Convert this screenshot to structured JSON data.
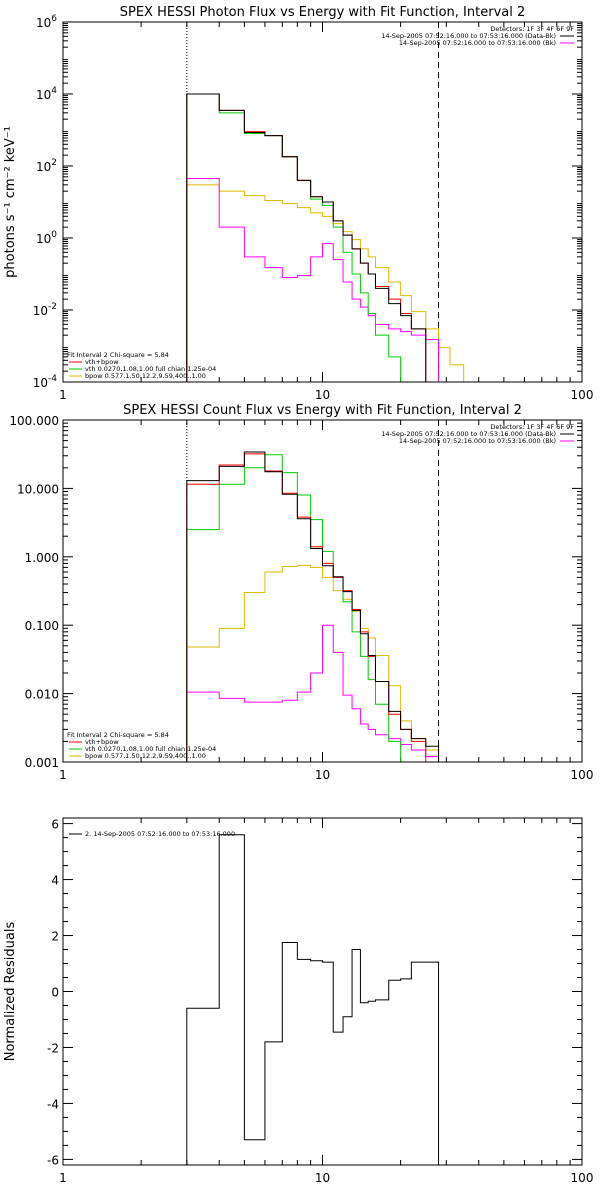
{
  "colors": {
    "total": "#000000",
    "vth_spow": "#ff0000",
    "vth": "#00cc00",
    "bpow": "#ddbb00",
    "background": "#ff00ff",
    "axes": "#000000"
  },
  "chart_data": [
    {
      "type": "line",
      "step": true,
      "xscale": "log",
      "yscale": "log",
      "title": "SPEX HESSI Photon Flux vs Energy with Fit Function, Interval 2",
      "ylabel": "photons s⁻¹ cm⁻² keV⁻¹",
      "xlim": [
        1,
        100
      ],
      "ylim": [
        0.0001,
        1000000
      ],
      "xticks": [
        {
          "v": 1,
          "label": "1"
        },
        {
          "v": 10,
          "label": "10"
        },
        {
          "v": 100,
          "label": "100"
        }
      ],
      "yticks": [
        {
          "v": 0.0001,
          "base": "10",
          "exp": "-4"
        },
        {
          "v": 0.01,
          "base": "10",
          "exp": "-2"
        },
        {
          "v": 1,
          "base": "10",
          "exp": "0"
        },
        {
          "v": 100,
          "base": "10",
          "exp": "2"
        },
        {
          "v": 10000,
          "base": "10",
          "exp": "4"
        },
        {
          "v": 1000000,
          "base": "10",
          "exp": "6"
        }
      ],
      "vlines": [
        {
          "x": 3,
          "style": "dotted"
        },
        {
          "x": 28,
          "style": "dashed"
        }
      ],
      "header_lines": [
        {
          "text": "Detectors: 1F 3F 4F 6F 9F",
          "color": ""
        },
        {
          "text": "14-Sep-2005 07:52:16.000 to 07:53:16.000 (Data-Bk)",
          "color": "#000000"
        },
        {
          "text": "14-Sep-2005 07:52:16.000 to 07:53:16.000 (Bk)",
          "color": "#ff00ff"
        }
      ],
      "legend_lines": [
        {
          "text": "Fit Interval 2   Chi-square = 5.84",
          "color": ""
        },
        {
          "text": "vth+bpow",
          "color": "#ff0000"
        },
        {
          "text": "vth 0.0270,1.08,1.00  full chian 1.25e-04",
          "color": "#00cc00"
        },
        {
          "text": "bpow 0.577,1.50,12.2,9.59,400.,1.00",
          "color": "#ddbb00"
        }
      ],
      "bin_edges": [
        3,
        4,
        5,
        6,
        7,
        8,
        9,
        10,
        11,
        12,
        13,
        14,
        15,
        16,
        18,
        20,
        22,
        25,
        28,
        31,
        35,
        40
      ],
      "series": [
        {
          "color": "#ddbb00",
          "values": [
            30,
            20,
            15,
            11,
            9,
            7,
            5,
            4,
            2.5,
            1.5,
            0.9,
            0.5,
            0.3,
            0.15,
            0.06,
            0.025,
            0.009,
            0.003,
            0.0009,
            0.0003,
            0.0001
          ]
        },
        {
          "color": "#ff00ff",
          "values": [
            45,
            2,
            0.3,
            0.15,
            0.08,
            0.09,
            0.3,
            0.7,
            0.25,
            0.06,
            0.02,
            0.012,
            0.007,
            0.004,
            0.003,
            0.0025,
            0.002,
            0.0015,
            0.0001
          ]
        },
        {
          "color": "#00cc00",
          "values": [
            10000,
            3000,
            800,
            700,
            180,
            40,
            12,
            8,
            2,
            0.4,
            0.1,
            0.03,
            0.008,
            0.002,
            0.0005,
            0.0001
          ]
        },
        {
          "color": "#ff0000",
          "values": [
            10000,
            3500,
            900,
            700,
            180,
            40,
            14,
            10,
            3,
            1.2,
            0.5,
            0.2,
            0.1,
            0.045,
            0.02,
            0.008,
            0.003
          ]
        },
        {
          "color": "#000000",
          "values": [
            10000,
            3500,
            850,
            700,
            180,
            40,
            14,
            10,
            3,
            1.2,
            0.5,
            0.2,
            0.1,
            0.04,
            0.015,
            0.007,
            0.003
          ]
        }
      ]
    },
    {
      "type": "line",
      "step": true,
      "xscale": "log",
      "yscale": "log",
      "title": "SPEX HESSI Count Flux vs Energy with Fit Function, Interval 2",
      "ylabel": "",
      "xlim": [
        1,
        100
      ],
      "ylim": [
        0.001,
        100
      ],
      "xticks": [
        {
          "v": 1,
          "label": "1"
        },
        {
          "v": 10,
          "label": "10"
        },
        {
          "v": 100,
          "label": "100"
        }
      ],
      "yticks": [
        {
          "v": 0.001,
          "label": "0.001"
        },
        {
          "v": 0.01,
          "label": "0.010"
        },
        {
          "v": 0.1,
          "label": "0.100"
        },
        {
          "v": 1,
          "label": "1.000"
        },
        {
          "v": 10,
          "label": "10.000"
        },
        {
          "v": 100,
          "label": "100.000"
        }
      ],
      "vlines": [
        {
          "x": 3,
          "style": "dotted"
        },
        {
          "x": 28,
          "style": "dashed"
        }
      ],
      "header_lines": [
        {
          "text": "Detectors: 1F 3F 4F 6F 9F",
          "color": ""
        },
        {
          "text": "14-Sep-2005 07:52:16.000 to 07:53:16.000 (Data-Bk)",
          "color": "#000000"
        },
        {
          "text": "14-Sep-2005 07:52:16.000 to 07:53:16.000 (Bk)",
          "color": "#ff00ff"
        }
      ],
      "legend_lines": [
        {
          "text": "Fit Interval 2   Chi-square = 5.84",
          "color": ""
        },
        {
          "text": "vth+bpow",
          "color": "#ff0000"
        },
        {
          "text": "vth 0.0270,1.08,1.00  full chian 1.25e-04",
          "color": "#00cc00"
        },
        {
          "text": "bpow 0.577,1.50,12.2,9.59,400.,1.00",
          "color": "#ddbb00"
        }
      ],
      "bin_edges": [
        3,
        4,
        5,
        6,
        7,
        8,
        9,
        10,
        11,
        12,
        13,
        14,
        15,
        16,
        18,
        20,
        22,
        25,
        28
      ],
      "series": [
        {
          "color": "#ddbb00",
          "values": [
            0.048,
            0.09,
            0.3,
            0.6,
            0.72,
            0.75,
            0.7,
            0.5,
            0.32,
            0.24,
            0.16,
            0.09,
            0.065,
            0.036,
            0.013,
            0.004,
            0.0022,
            0.0015
          ]
        },
        {
          "color": "#ff00ff",
          "values": [
            0.0105,
            0.0085,
            0.0075,
            0.0075,
            0.008,
            0.0105,
            0.02,
            0.1,
            0.04,
            0.0095,
            0.006,
            0.0036,
            0.003,
            0.0025,
            0.0022,
            0.0018,
            0.0015,
            0.0012
          ]
        },
        {
          "color": "#00cc00",
          "values": [
            2.5,
            11.5,
            20,
            31,
            17,
            8,
            3.5,
            1.2,
            0.5,
            0.22,
            0.08,
            0.035,
            0.016,
            0.007,
            0.002
          ]
        },
        {
          "color": "#ff0000",
          "values": [
            11.5,
            22,
            32,
            18,
            8.5,
            3.8,
            1.4,
            0.8,
            0.5,
            0.32,
            0.17,
            0.08,
            0.035,
            0.015,
            0.005,
            0.003,
            0.002
          ]
        },
        {
          "color": "#000000",
          "values": [
            13,
            21,
            34,
            17.5,
            8.2,
            3.6,
            1.32,
            0.74,
            0.51,
            0.31,
            0.165,
            0.075,
            0.036,
            0.015,
            0.0055,
            0.003,
            0.0022,
            0.0017
          ]
        }
      ]
    },
    {
      "type": "line",
      "step": true,
      "xscale": "log",
      "yscale": "linear",
      "title": "",
      "ylabel": "Normalized Residuals",
      "xlim": [
        1,
        100
      ],
      "ylim": [
        -6.2,
        6.2
      ],
      "xticks": [
        {
          "v": 1,
          "label": "1"
        },
        {
          "v": 10,
          "label": "10"
        },
        {
          "v": 100,
          "label": "100"
        }
      ],
      "yticks": [
        {
          "v": -6,
          "label": "-6"
        },
        {
          "v": -4,
          "label": "-4"
        },
        {
          "v": -2,
          "label": "-2"
        },
        {
          "v": 0,
          "label": "0"
        },
        {
          "v": 2,
          "label": "2"
        },
        {
          "v": 4,
          "label": "4"
        },
        {
          "v": 6,
          "label": "6"
        }
      ],
      "vlines": [],
      "header_lines": [],
      "legend_lines": [
        {
          "text": "2. 14-Sep-2005 07:52:16.000 to 07:53:16.000",
          "color": "#000000"
        }
      ],
      "bin_edges": [
        3,
        4,
        5,
        6,
        7,
        8,
        9,
        10,
        11,
        12,
        13,
        14,
        15,
        16,
        18,
        20,
        22,
        25,
        28
      ],
      "series": [
        {
          "color": "#000000",
          "values": [
            -0.6,
            5.6,
            -5.3,
            -1.8,
            1.75,
            1.15,
            1.1,
            1.05,
            -1.45,
            -0.9,
            1.5,
            -0.4,
            -0.35,
            -0.3,
            0.4,
            0.45,
            1.05,
            1.05
          ]
        }
      ]
    }
  ]
}
